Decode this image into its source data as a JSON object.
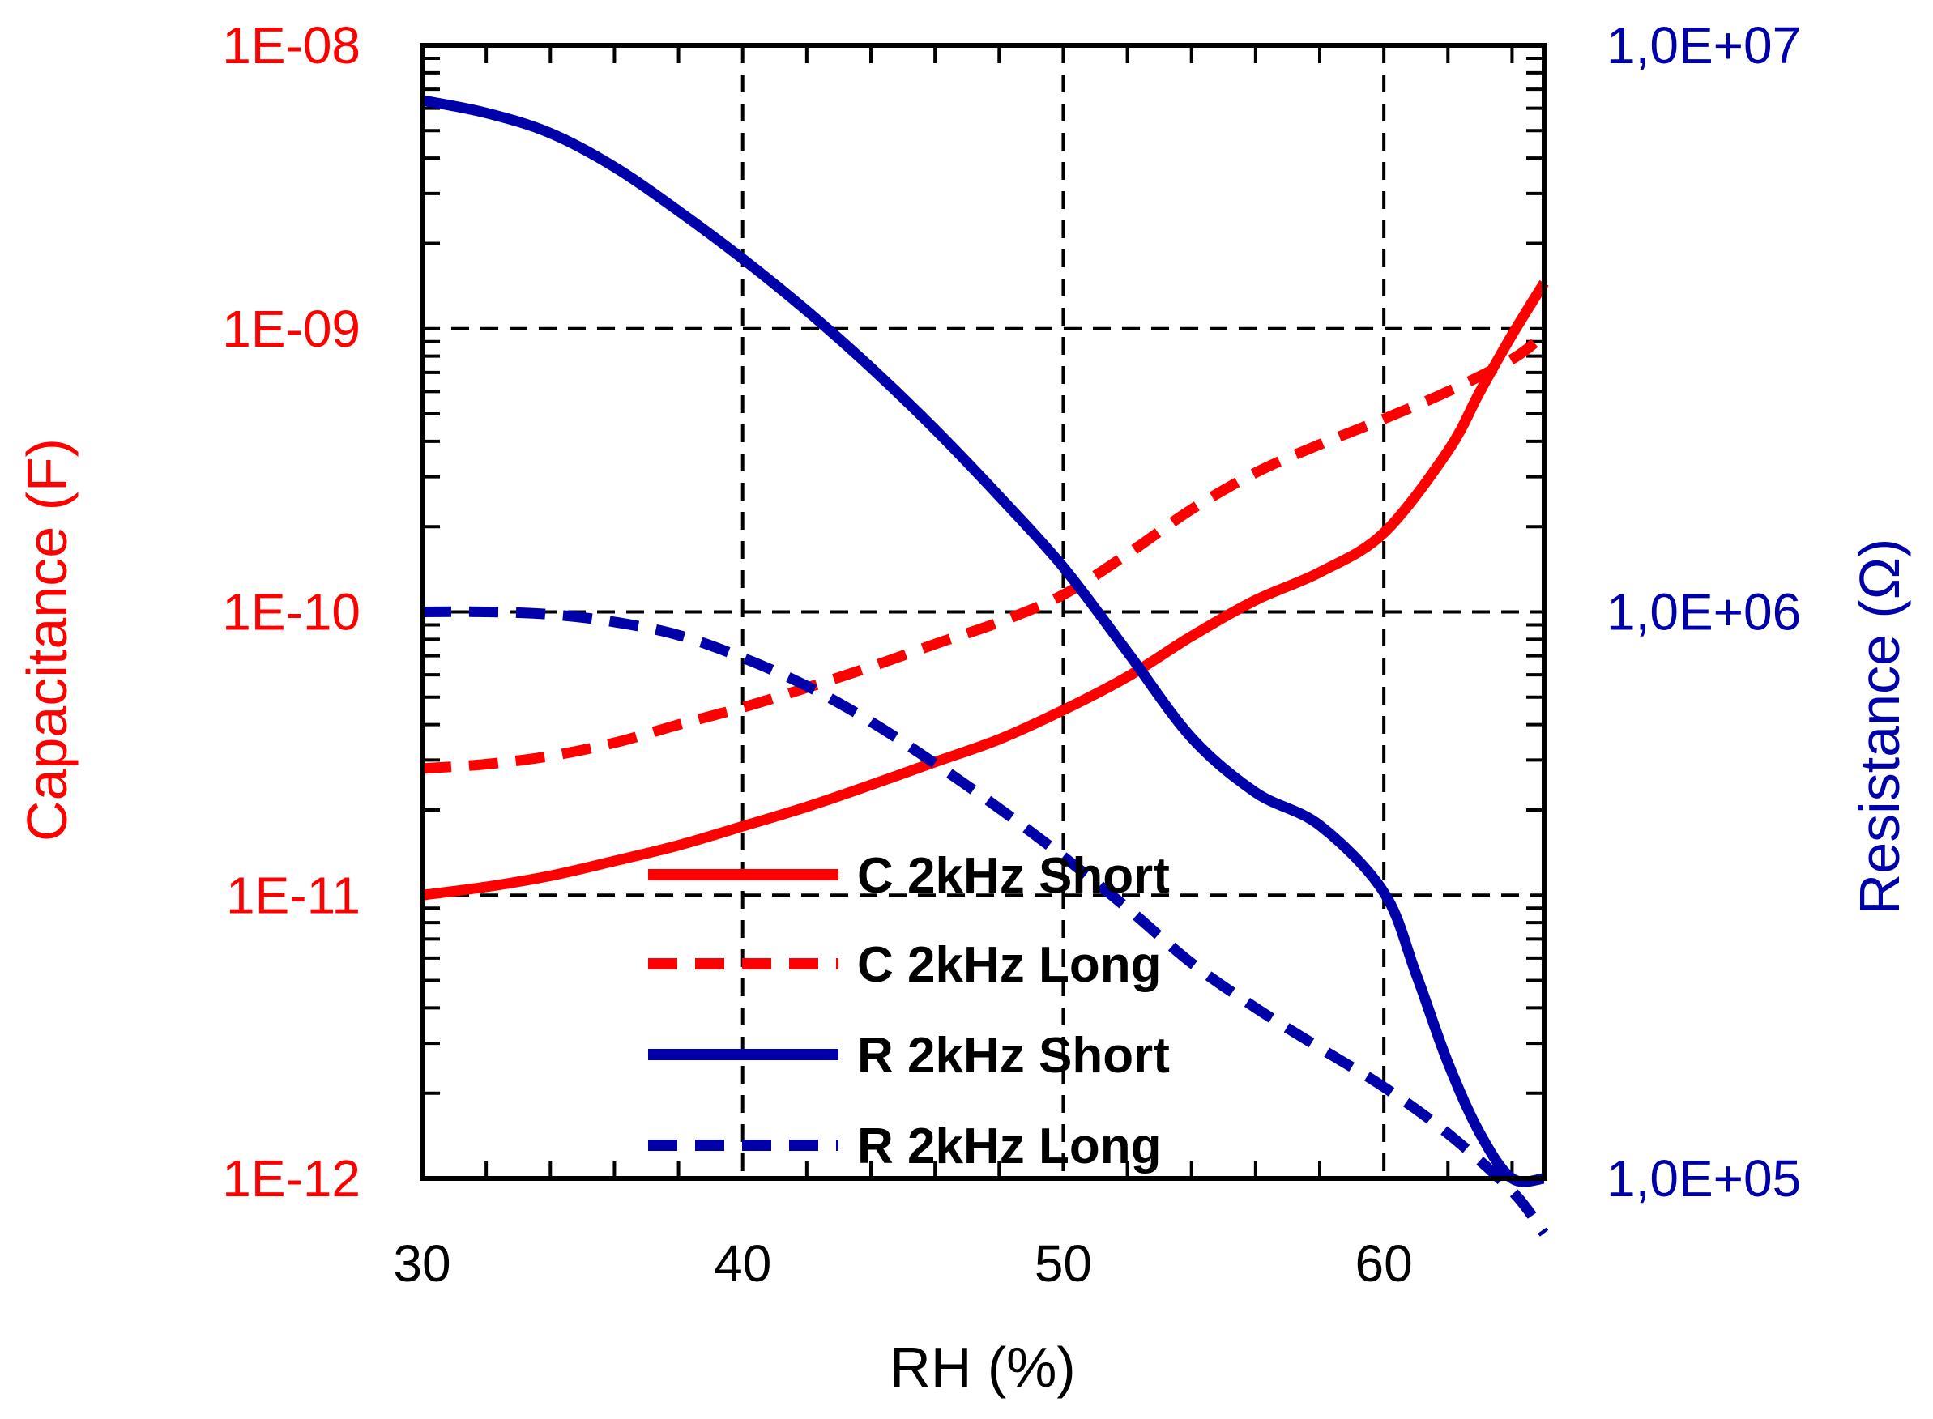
{
  "chart_data": {
    "type": "line",
    "title": "",
    "xlabel": "RH (%)",
    "ylabel_left": "Capacitance (F)",
    "ylabel_right": "Resistance (Ω)",
    "xlim": [
      30,
      65
    ],
    "ylim_left": [
      1e-12,
      1e-08
    ],
    "ylim_right": [
      100000,
      10000000
    ],
    "yscale": "log",
    "grid": true,
    "legend_position": "bottom-center",
    "x_ticks": [
      "30",
      "40",
      "50",
      "60"
    ],
    "x_tick_values": [
      30,
      40,
      50,
      60
    ],
    "y_left_ticks": [
      "1E-08",
      "1E-09",
      "1E-10",
      "1E-11",
      "1E-12"
    ],
    "y_left_tick_values": [
      1e-08,
      1e-09,
      1e-10,
      1e-11,
      1e-12
    ],
    "y_right_ticks": [
      "1,0E+07",
      "1,0E+06",
      "1,0E+05"
    ],
    "y_right_tick_values": [
      10000000,
      1000000,
      100000
    ],
    "colors": {
      "capacitance": "#ff0000",
      "resistance": "#0000aa",
      "grid": "#000000",
      "frame": "#000000"
    },
    "series": [
      {
        "name": "C 2kHz Short",
        "axis": "left",
        "dash": false,
        "color": "#ff0000",
        "x": [
          30,
          32,
          34,
          36,
          38,
          40,
          42,
          44,
          46,
          48,
          50,
          52,
          54,
          56,
          58,
          60,
          62,
          63,
          64,
          65
        ],
        "y": [
          1e-11,
          1.07e-11,
          1.17e-11,
          1.32e-11,
          1.5e-11,
          1.75e-11,
          2.05e-11,
          2.45e-11,
          2.95e-11,
          3.55e-11,
          4.5e-11,
          5.9e-11,
          8.2e-11,
          1.1e-10,
          1.38e-10,
          1.9e-10,
          3.7e-10,
          6e-10,
          9.5e-10,
          1.45e-09
        ]
      },
      {
        "name": "C 2kHz Long",
        "axis": "left",
        "dash": true,
        "color": "#ff0000",
        "x": [
          30,
          32,
          34,
          36,
          38,
          40,
          42,
          44,
          46,
          48,
          50,
          52,
          54,
          56,
          58,
          60,
          62,
          64,
          65
        ],
        "y": [
          2.8e-11,
          2.9e-11,
          3.1e-11,
          3.45e-11,
          4e-11,
          4.6e-11,
          5.4e-11,
          6.4e-11,
          7.7e-11,
          9.2e-11,
          1.15e-10,
          1.6e-10,
          2.3e-10,
          3.1e-10,
          3.9e-10,
          4.8e-10,
          6e-10,
          7.8e-10,
          9.5e-10
        ]
      },
      {
        "name": "R 2kHz Short",
        "axis": "right",
        "dash": false,
        "color": "#0000aa",
        "x": [
          30,
          32,
          34,
          36,
          38,
          40,
          42,
          44,
          46,
          48,
          50,
          52,
          54,
          56,
          58,
          60,
          61,
          62,
          63,
          64,
          65
        ],
        "y": [
          8000000,
          7600000,
          7000000,
          6100000,
          5100000,
          4200000,
          3400000,
          2700000,
          2100000,
          1600000,
          1200000,
          850000,
          600000,
          480000,
          420000,
          320000,
          230000,
          160000,
          120000,
          100000,
          100000
        ]
      },
      {
        "name": "R 2kHz Long",
        "axis": "right",
        "dash": true,
        "color": "#0000aa",
        "x": [
          30,
          32,
          34,
          36,
          38,
          40,
          42,
          44,
          46,
          48,
          50,
          52,
          54,
          56,
          58,
          60,
          62,
          64,
          65
        ],
        "y": [
          1000000,
          1000000,
          990000,
          960000,
          910000,
          830000,
          740000,
          640000,
          540000,
          450000,
          370000,
          300000,
          240000,
          200000,
          170000,
          145000,
          120000,
          95000,
          80000
        ]
      }
    ]
  }
}
